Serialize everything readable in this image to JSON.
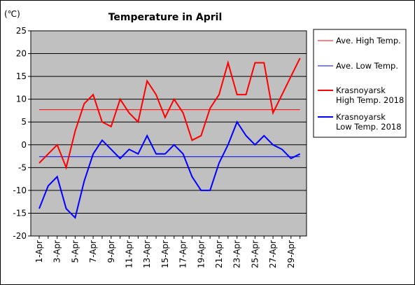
{
  "chart_data": {
    "type": "line",
    "title": "Temperature in April",
    "ylabel": "(℃)",
    "xlabel": "",
    "ylim": [
      -20,
      25
    ],
    "yticks": [
      25,
      20,
      15,
      10,
      5,
      0,
      -5,
      -10,
      -15,
      -20
    ],
    "days": [
      1,
      2,
      3,
      4,
      5,
      6,
      7,
      8,
      9,
      10,
      11,
      12,
      13,
      14,
      15,
      16,
      17,
      18,
      19,
      20,
      21,
      22,
      23,
      24,
      25,
      26,
      27,
      28,
      29,
      30
    ],
    "xtick_labels": [
      "1-Apr",
      "3-Apr",
      "5-Apr",
      "7-Apr",
      "9-Apr",
      "11-Apr",
      "13-Apr",
      "15-Apr",
      "17-Apr",
      "19-Apr",
      "21-Apr",
      "23-Apr",
      "25-Apr",
      "27-Apr",
      "29-Apr"
    ],
    "grid": true,
    "legend_position": "right",
    "series": [
      {
        "name": "Ave. High Temp.",
        "color": "#ff0000",
        "style": "thin",
        "values": [
          7.7,
          7.7,
          7.7,
          7.7,
          7.7,
          7.7,
          7.7,
          7.7,
          7.7,
          7.7,
          7.7,
          7.7,
          7.7,
          7.7,
          7.7,
          7.7,
          7.7,
          7.7,
          7.7,
          7.7,
          7.7,
          7.7,
          7.7,
          7.7,
          7.7,
          7.7,
          7.7,
          7.7,
          7.7,
          7.7
        ]
      },
      {
        "name": "Ave. Low Temp.",
        "color": "#0000ff",
        "style": "thin",
        "values": [
          -2.6,
          -2.6,
          -2.6,
          -2.6,
          -2.6,
          -2.6,
          -2.6,
          -2.6,
          -2.6,
          -2.6,
          -2.6,
          -2.6,
          -2.6,
          -2.6,
          -2.6,
          -2.6,
          -2.6,
          -2.6,
          -2.6,
          -2.6,
          -2.6,
          -2.6,
          -2.6,
          -2.6,
          -2.6,
          -2.6,
          -2.6,
          -2.6,
          -2.6,
          -2.6
        ]
      },
      {
        "name": "Krasnoyarsk High Temp. 2018",
        "name_lines": [
          "Krasnoyarsk",
          "High Temp. 2018"
        ],
        "color": "#ff0000",
        "style": "thick",
        "values": [
          -4,
          -2,
          0,
          -5,
          3,
          9,
          11,
          5,
          4,
          10,
          7,
          5,
          14,
          11,
          6,
          10,
          7,
          1,
          2,
          8,
          11,
          18,
          11,
          11,
          18,
          18,
          7,
          11,
          15,
          19
        ]
      },
      {
        "name": "Krasnoyarsk Low Temp. 2018",
        "name_lines": [
          "Krasnoyarsk",
          "Low Temp. 2018"
        ],
        "color": "#0000ff",
        "style": "thick",
        "values": [
          -14,
          -9,
          -7,
          -14,
          -16,
          -8,
          -2,
          1,
          -1,
          -3,
          -1,
          -2,
          2,
          -2,
          -2,
          0,
          -2,
          -7,
          -10,
          -10,
          -4,
          0,
          5,
          2,
          0,
          2,
          0,
          -1,
          -3,
          -2
        ]
      }
    ]
  }
}
